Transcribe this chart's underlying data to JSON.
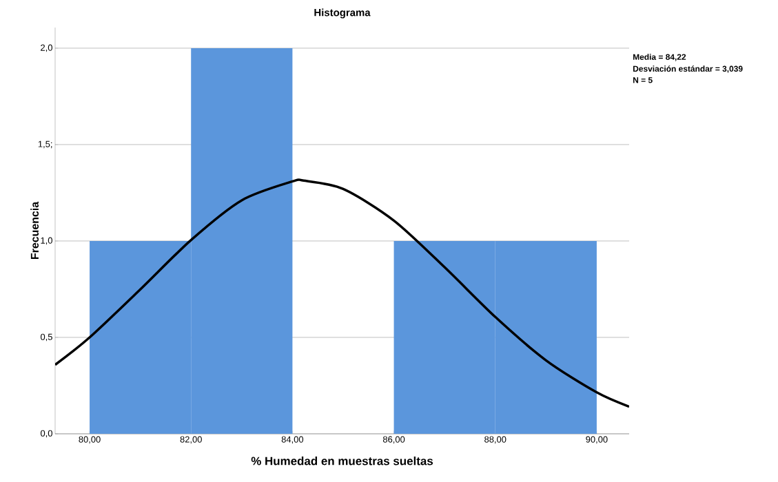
{
  "chart_data": {
    "type": "histogram",
    "title": "Histograma",
    "xlabel": "% Humedad en muestras sueltas",
    "ylabel": "Frecuencia",
    "bins": [
      80,
      82,
      84,
      86,
      88,
      90
    ],
    "values": [
      1,
      2,
      0,
      1,
      1
    ],
    "color": "#5b96dc",
    "series": [
      {
        "type": "line",
        "color": "#000000",
        "x": [
          79.32,
          80,
          81,
          82,
          83,
          84,
          84.22,
          85,
          86,
          87,
          88,
          89,
          90,
          90.64
        ],
        "values": [
          0.358,
          0.5,
          0.749,
          1.005,
          1.211,
          1.309,
          1.313,
          1.27,
          1.106,
          0.864,
          0.606,
          0.381,
          0.215,
          0.141
        ]
      }
    ],
    "xlim": [
      79.32,
      90.64
    ],
    "ylim": [
      0,
      2.107
    ],
    "xticks": [
      {
        "value": 80,
        "label": "80,00"
      },
      {
        "value": 82,
        "label": "82,00"
      },
      {
        "value": 84,
        "label": "84,00"
      },
      {
        "value": 86,
        "label": "86,00"
      },
      {
        "value": 88,
        "label": "88,00"
      },
      {
        "value": 90,
        "label": "90,00"
      }
    ],
    "yticks": [
      {
        "value": 0,
        "label": "0,0"
      },
      {
        "value": 0.5,
        "label": "0,5"
      },
      {
        "value": 1,
        "label": "1,0"
      },
      {
        "value": 1.5,
        "label": "1,5;"
      },
      {
        "value": 2,
        "label": "2,0"
      }
    ],
    "grid": "y",
    "annotations": [
      "Media = 84,22",
      "Desviación estándar = 3,039",
      "N = 5"
    ]
  }
}
